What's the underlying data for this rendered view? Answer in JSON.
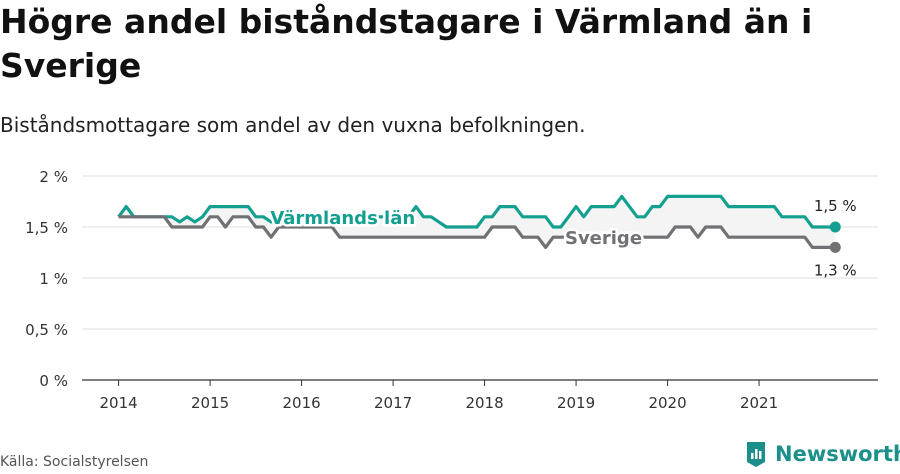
{
  "header": {
    "title": "Högre andel biståndstagare i Värmland än i Sverige",
    "subtitle": "Biståndsmottagare som andel av den vuxna befolkningen."
  },
  "footer": {
    "source": "Källa: Socialstyrelsen",
    "brand": "Newsworthy",
    "brand_icon": "newsworthy-logo-icon"
  },
  "chart_data": {
    "type": "line",
    "x_tick_labels": [
      "2014",
      "2015",
      "2016",
      "2017",
      "2018",
      "2019",
      "2020",
      "2021"
    ],
    "y_tick_labels": [
      "0 %",
      "0,5 %",
      "1 %",
      "1,5 %",
      "2 %"
    ],
    "ylim": [
      0,
      2
    ],
    "y_ticks": [
      0,
      0.5,
      1,
      1.5,
      2
    ],
    "xlim": [
      2013.6,
      2022.3
    ],
    "grid": "horizontal",
    "series": [
      {
        "name": "Värmlands län",
        "color": "#14a091",
        "end_label": "1,5 %",
        "points": [
          [
            2014.0,
            1.6
          ],
          [
            2014.083,
            1.7
          ],
          [
            2014.167,
            1.6
          ],
          [
            2014.25,
            1.6
          ],
          [
            2014.333,
            1.6
          ],
          [
            2014.417,
            1.6
          ],
          [
            2014.5,
            1.6
          ],
          [
            2014.583,
            1.6
          ],
          [
            2014.667,
            1.55
          ],
          [
            2014.75,
            1.6
          ],
          [
            2014.833,
            1.55
          ],
          [
            2014.917,
            1.6
          ],
          [
            2015.0,
            1.7
          ],
          [
            2015.083,
            1.7
          ],
          [
            2015.167,
            1.7
          ],
          [
            2015.25,
            1.7
          ],
          [
            2015.333,
            1.7
          ],
          [
            2015.417,
            1.7
          ],
          [
            2015.5,
            1.6
          ],
          [
            2015.583,
            1.6
          ],
          [
            2015.667,
            1.55
          ],
          [
            2015.75,
            1.6
          ],
          [
            2015.833,
            1.6
          ],
          [
            2015.917,
            1.55
          ],
          [
            2016.0,
            1.6
          ],
          [
            2016.083,
            1.6
          ],
          [
            2016.167,
            1.6
          ],
          [
            2016.25,
            1.6
          ],
          [
            2016.333,
            1.6
          ],
          [
            2016.417,
            1.6
          ],
          [
            2016.5,
            1.6
          ],
          [
            2016.583,
            1.6
          ],
          [
            2016.667,
            1.6
          ],
          [
            2016.75,
            1.6
          ],
          [
            2016.833,
            1.6
          ],
          [
            2016.917,
            1.6
          ],
          [
            2017.0,
            1.6
          ],
          [
            2017.083,
            1.6
          ],
          [
            2017.167,
            1.6
          ],
          [
            2017.25,
            1.7
          ],
          [
            2017.333,
            1.6
          ],
          [
            2017.417,
            1.6
          ],
          [
            2017.5,
            1.55
          ],
          [
            2017.583,
            1.5
          ],
          [
            2017.667,
            1.5
          ],
          [
            2017.75,
            1.5
          ],
          [
            2017.833,
            1.5
          ],
          [
            2017.917,
            1.5
          ],
          [
            2018.0,
            1.6
          ],
          [
            2018.083,
            1.6
          ],
          [
            2018.167,
            1.7
          ],
          [
            2018.25,
            1.7
          ],
          [
            2018.333,
            1.7
          ],
          [
            2018.417,
            1.6
          ],
          [
            2018.5,
            1.6
          ],
          [
            2018.583,
            1.6
          ],
          [
            2018.667,
            1.6
          ],
          [
            2018.75,
            1.5
          ],
          [
            2018.833,
            1.5
          ],
          [
            2018.917,
            1.6
          ],
          [
            2019.0,
            1.7
          ],
          [
            2019.083,
            1.6
          ],
          [
            2019.167,
            1.7
          ],
          [
            2019.25,
            1.7
          ],
          [
            2019.333,
            1.7
          ],
          [
            2019.417,
            1.7
          ],
          [
            2019.5,
            1.8
          ],
          [
            2019.583,
            1.7
          ],
          [
            2019.667,
            1.6
          ],
          [
            2019.75,
            1.6
          ],
          [
            2019.833,
            1.7
          ],
          [
            2019.917,
            1.7
          ],
          [
            2020.0,
            1.8
          ],
          [
            2020.083,
            1.8
          ],
          [
            2020.167,
            1.8
          ],
          [
            2020.25,
            1.8
          ],
          [
            2020.333,
            1.8
          ],
          [
            2020.417,
            1.8
          ],
          [
            2020.5,
            1.8
          ],
          [
            2020.583,
            1.8
          ],
          [
            2020.667,
            1.7
          ],
          [
            2020.75,
            1.7
          ],
          [
            2020.833,
            1.7
          ],
          [
            2020.917,
            1.7
          ],
          [
            2021.0,
            1.7
          ],
          [
            2021.083,
            1.7
          ],
          [
            2021.167,
            1.7
          ],
          [
            2021.25,
            1.6
          ],
          [
            2021.333,
            1.6
          ],
          [
            2021.417,
            1.6
          ],
          [
            2021.5,
            1.6
          ],
          [
            2021.583,
            1.5
          ],
          [
            2021.667,
            1.5
          ],
          [
            2021.75,
            1.5
          ],
          [
            2021.833,
            1.5
          ]
        ]
      },
      {
        "name": "Sverige",
        "color": "#707075",
        "end_label": "1,3 %",
        "points": [
          [
            2014.0,
            1.6
          ],
          [
            2014.083,
            1.6
          ],
          [
            2014.167,
            1.6
          ],
          [
            2014.25,
            1.6
          ],
          [
            2014.333,
            1.6
          ],
          [
            2014.417,
            1.6
          ],
          [
            2014.5,
            1.6
          ],
          [
            2014.583,
            1.5
          ],
          [
            2014.667,
            1.5
          ],
          [
            2014.75,
            1.5
          ],
          [
            2014.833,
            1.5
          ],
          [
            2014.917,
            1.5
          ],
          [
            2015.0,
            1.6
          ],
          [
            2015.083,
            1.6
          ],
          [
            2015.167,
            1.5
          ],
          [
            2015.25,
            1.6
          ],
          [
            2015.333,
            1.6
          ],
          [
            2015.417,
            1.6
          ],
          [
            2015.5,
            1.5
          ],
          [
            2015.583,
            1.5
          ],
          [
            2015.667,
            1.4
          ],
          [
            2015.75,
            1.5
          ],
          [
            2015.833,
            1.5
          ],
          [
            2015.917,
            1.5
          ],
          [
            2016.0,
            1.5
          ],
          [
            2016.083,
            1.5
          ],
          [
            2016.167,
            1.5
          ],
          [
            2016.25,
            1.5
          ],
          [
            2016.333,
            1.5
          ],
          [
            2016.417,
            1.4
          ],
          [
            2016.5,
            1.4
          ],
          [
            2016.583,
            1.4
          ],
          [
            2016.667,
            1.4
          ],
          [
            2016.75,
            1.4
          ],
          [
            2016.833,
            1.4
          ],
          [
            2016.917,
            1.4
          ],
          [
            2017.0,
            1.4
          ],
          [
            2017.083,
            1.4
          ],
          [
            2017.167,
            1.4
          ],
          [
            2017.25,
            1.4
          ],
          [
            2017.333,
            1.4
          ],
          [
            2017.417,
            1.4
          ],
          [
            2017.5,
            1.4
          ],
          [
            2017.583,
            1.4
          ],
          [
            2017.667,
            1.4
          ],
          [
            2017.75,
            1.4
          ],
          [
            2017.833,
            1.4
          ],
          [
            2017.917,
            1.4
          ],
          [
            2018.0,
            1.4
          ],
          [
            2018.083,
            1.5
          ],
          [
            2018.167,
            1.5
          ],
          [
            2018.25,
            1.5
          ],
          [
            2018.333,
            1.5
          ],
          [
            2018.417,
            1.4
          ],
          [
            2018.5,
            1.4
          ],
          [
            2018.583,
            1.4
          ],
          [
            2018.667,
            1.3
          ],
          [
            2018.75,
            1.4
          ],
          [
            2018.833,
            1.4
          ],
          [
            2018.917,
            1.4
          ],
          [
            2019.0,
            1.4
          ],
          [
            2019.083,
            1.4
          ],
          [
            2019.167,
            1.4
          ],
          [
            2019.25,
            1.4
          ],
          [
            2019.333,
            1.4
          ],
          [
            2019.417,
            1.4
          ],
          [
            2019.5,
            1.4
          ],
          [
            2019.583,
            1.4
          ],
          [
            2019.667,
            1.4
          ],
          [
            2019.75,
            1.4
          ],
          [
            2019.833,
            1.4
          ],
          [
            2019.917,
            1.4
          ],
          [
            2020.0,
            1.4
          ],
          [
            2020.083,
            1.5
          ],
          [
            2020.167,
            1.5
          ],
          [
            2020.25,
            1.5
          ],
          [
            2020.333,
            1.4
          ],
          [
            2020.417,
            1.5
          ],
          [
            2020.5,
            1.5
          ],
          [
            2020.583,
            1.5
          ],
          [
            2020.667,
            1.4
          ],
          [
            2020.75,
            1.4
          ],
          [
            2020.833,
            1.4
          ],
          [
            2020.917,
            1.4
          ],
          [
            2021.0,
            1.4
          ],
          [
            2021.083,
            1.4
          ],
          [
            2021.167,
            1.4
          ],
          [
            2021.25,
            1.4
          ],
          [
            2021.333,
            1.4
          ],
          [
            2021.417,
            1.4
          ],
          [
            2021.5,
            1.4
          ],
          [
            2021.583,
            1.3
          ],
          [
            2021.667,
            1.3
          ],
          [
            2021.75,
            1.3
          ],
          [
            2021.833,
            1.3
          ]
        ]
      }
    ],
    "inline_labels": [
      {
        "text": "Värmlands län",
        "series": 0,
        "at_x": 2016.45
      },
      {
        "text": "Sverige",
        "series": 1,
        "at_x": 2019.3
      }
    ]
  }
}
